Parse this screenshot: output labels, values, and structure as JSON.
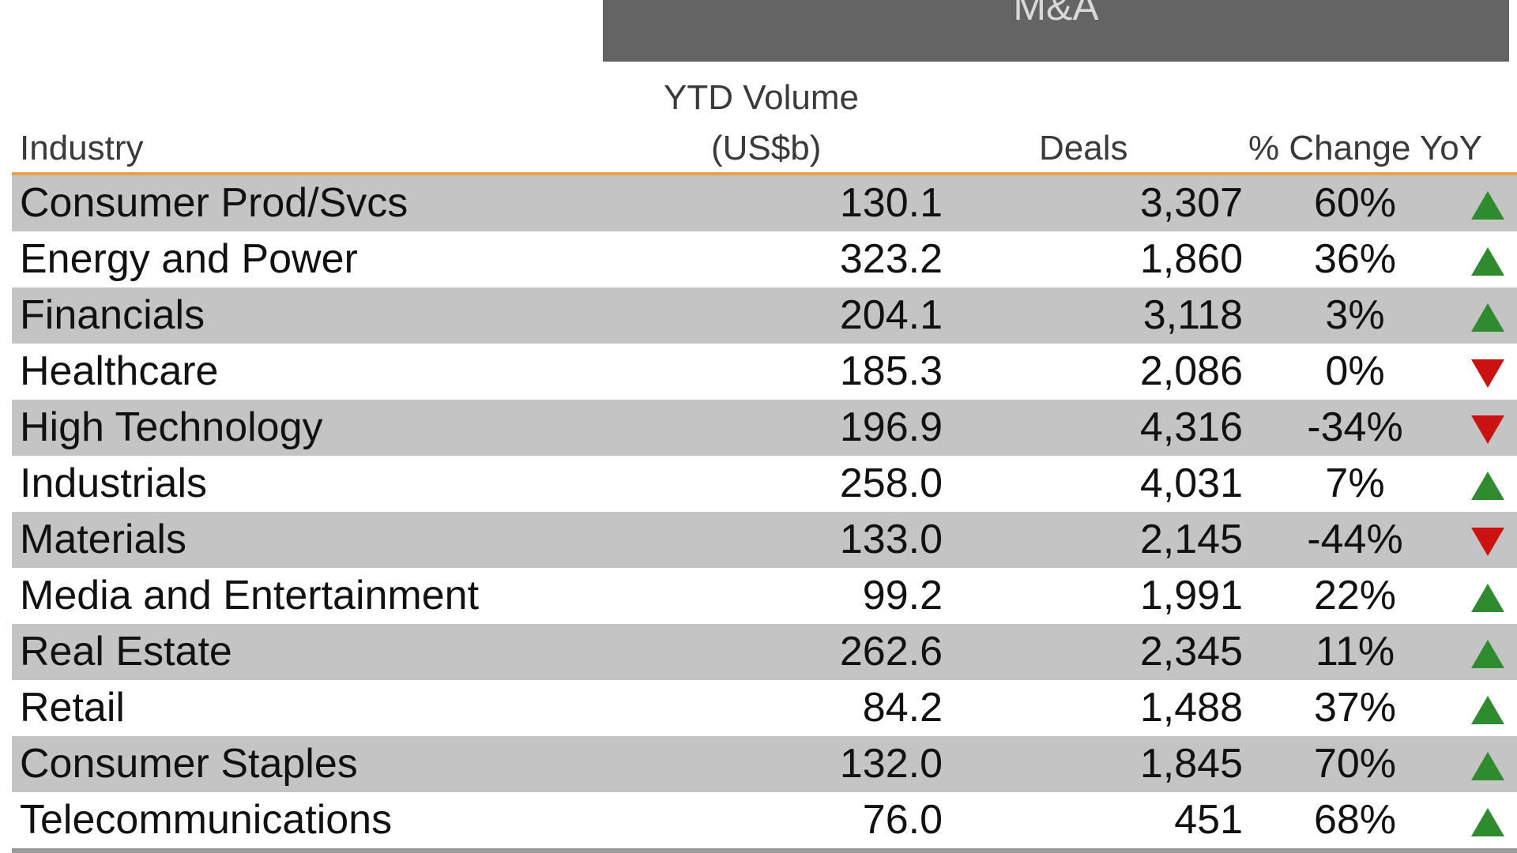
{
  "chart_data": {
    "type": "table",
    "title": "M&A",
    "columns": [
      "Industry",
      "YTD Volume (US$b)",
      "Deals",
      "% Change YoY"
    ],
    "rows": [
      {
        "industry": "Consumer Prod/Svcs",
        "volume": "130.1",
        "deals": "3,307",
        "change": "60%",
        "direction": "up"
      },
      {
        "industry": "Energy and Power",
        "volume": "323.2",
        "deals": "1,860",
        "change": "36%",
        "direction": "up"
      },
      {
        "industry": "Financials",
        "volume": "204.1",
        "deals": "3,118",
        "change": "3%",
        "direction": "up"
      },
      {
        "industry": "Healthcare",
        "volume": "185.3",
        "deals": "2,086",
        "change": "0%",
        "direction": "down"
      },
      {
        "industry": "High Technology",
        "volume": "196.9",
        "deals": "4,316",
        "change": "-34%",
        "direction": "down"
      },
      {
        "industry": "Industrials",
        "volume": "258.0",
        "deals": "4,031",
        "change": "7%",
        "direction": "up"
      },
      {
        "industry": "Materials",
        "volume": "133.0",
        "deals": "2,145",
        "change": "-44%",
        "direction": "down"
      },
      {
        "industry": "Media and Entertainment",
        "volume": "99.2",
        "deals": "1,991",
        "change": "22%",
        "direction": "up"
      },
      {
        "industry": "Real Estate",
        "volume": "262.6",
        "deals": "2,345",
        "change": "11%",
        "direction": "up"
      },
      {
        "industry": "Retail",
        "volume": "84.2",
        "deals": "1,488",
        "change": "37%",
        "direction": "up"
      },
      {
        "industry": "Consumer Staples",
        "volume": "132.0",
        "deals": "1,845",
        "change": "70%",
        "direction": "up"
      },
      {
        "industry": "Telecommunications",
        "volume": "76.0",
        "deals": "451",
        "change": "68%",
        "direction": "up"
      }
    ]
  },
  "header": {
    "title": "M&A",
    "industry": "Industry",
    "volume_line1": "YTD Volume",
    "volume_line2": "(US$b)",
    "deals": "Deals",
    "change": "% Change YoY"
  },
  "colors": {
    "banner": "#646464",
    "rule": "#e8a04a",
    "row_alt": "#c4c4c4",
    "up": "#2e8b2e",
    "down": "#cc1111"
  },
  "icons": {
    "up": "green-up-triangle-icon",
    "down": "red-down-triangle-icon"
  }
}
